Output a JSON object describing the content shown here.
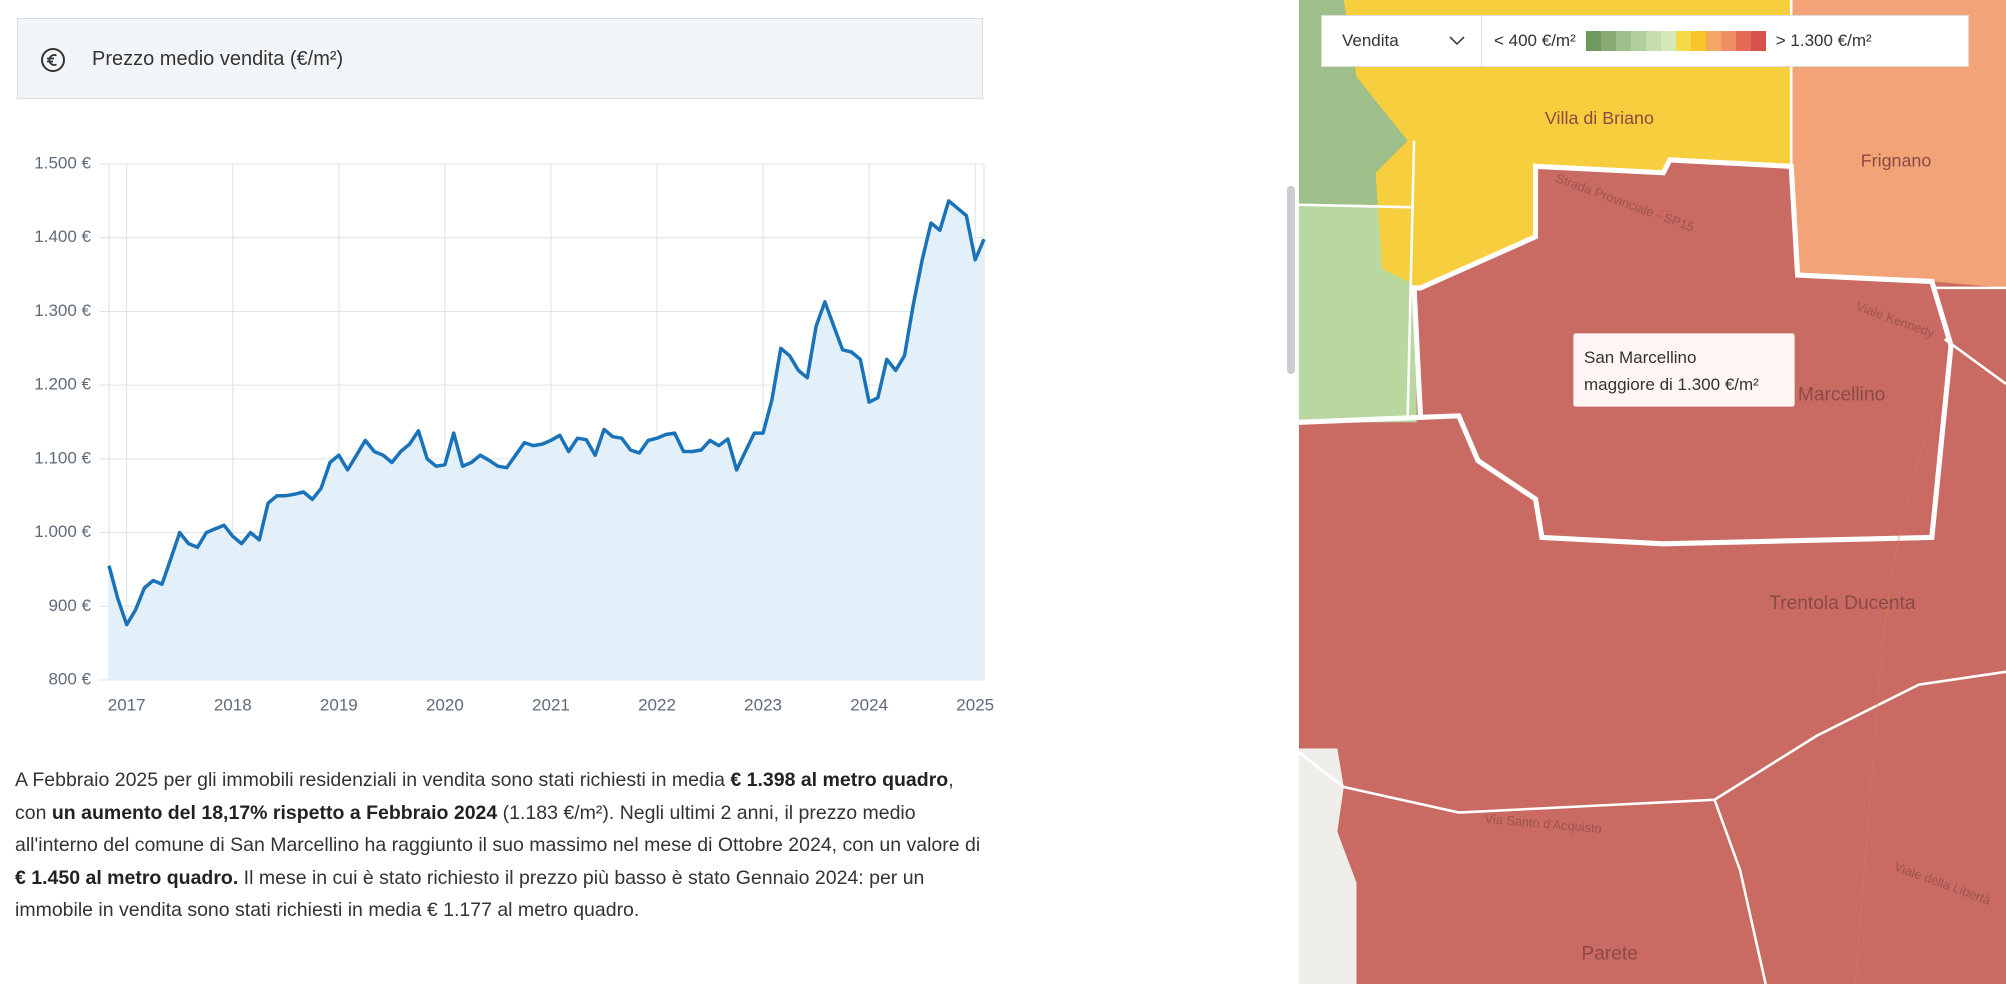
{
  "header": {
    "title": "Prezzo medio vendita (€/m²)"
  },
  "chart_data": {
    "type": "line",
    "x": [
      2016.833,
      2016.917,
      2017,
      2017.083,
      2017.167,
      2017.25,
      2017.333,
      2017.417,
      2017.5,
      2017.583,
      2017.667,
      2017.75,
      2017.833,
      2017.917,
      2018,
      2018.083,
      2018.167,
      2018.25,
      2018.333,
      2018.417,
      2018.5,
      2018.583,
      2018.667,
      2018.75,
      2018.833,
      2018.917,
      2019,
      2019.083,
      2019.167,
      2019.25,
      2019.333,
      2019.417,
      2019.5,
      2019.583,
      2019.667,
      2019.75,
      2019.833,
      2019.917,
      2020,
      2020.083,
      2020.167,
      2020.25,
      2020.333,
      2020.417,
      2020.5,
      2020.583,
      2020.667,
      2020.75,
      2020.833,
      2020.917,
      2021,
      2021.083,
      2021.167,
      2021.25,
      2021.333,
      2021.417,
      2021.5,
      2021.583,
      2021.667,
      2021.75,
      2021.833,
      2021.917,
      2022,
      2022.083,
      2022.167,
      2022.25,
      2022.333,
      2022.417,
      2022.5,
      2022.583,
      2022.667,
      2022.75,
      2022.833,
      2022.917,
      2023,
      2023.083,
      2023.167,
      2023.25,
      2023.333,
      2023.417,
      2023.5,
      2023.583,
      2023.667,
      2023.75,
      2023.833,
      2023.917,
      2024,
      2024.083,
      2024.167,
      2024.25,
      2024.333,
      2024.417,
      2024.5,
      2024.583,
      2024.667,
      2024.75,
      2024.833,
      2024.917,
      2025,
      2025.083
    ],
    "values": [
      955,
      910,
      875,
      895,
      925,
      935,
      930,
      965,
      1000,
      985,
      980,
      1000,
      1005,
      1010,
      995,
      985,
      1000,
      990,
      1040,
      1050,
      1050,
      1052,
      1055,
      1045,
      1060,
      1095,
      1105,
      1085,
      1105,
      1125,
      1110,
      1105,
      1095,
      1110,
      1120,
      1138,
      1100,
      1090,
      1092,
      1135,
      1090,
      1095,
      1105,
      1098,
      1090,
      1088,
      1105,
      1122,
      1118,
      1120,
      1125,
      1132,
      1110,
      1128,
      1126,
      1105,
      1140,
      1130,
      1128,
      1112,
      1108,
      1125,
      1128,
      1133,
      1135,
      1110,
      1110,
      1112,
      1125,
      1118,
      1127,
      1085,
      1110,
      1135,
      1135,
      1180,
      1250,
      1240,
      1220,
      1210,
      1280,
      1313,
      1280,
      1248,
      1245,
      1235,
      1177,
      1183,
      1235,
      1220,
      1240,
      1310,
      1370,
      1420,
      1410,
      1450,
      1440,
      1430,
      1370,
      1398
    ],
    "color": "#1a73b8",
    "area_color": "#e3f0f9",
    "xlim": [
      2016.833,
      2025.083
    ],
    "xticks": [
      2017,
      2018,
      2019,
      2020,
      2021,
      2022,
      2023,
      2024,
      2025
    ],
    "ylim": [
      800,
      1500
    ],
    "yticks": [
      {
        "value": 800,
        "label": "800 €"
      },
      {
        "value": 900,
        "label": "900 €"
      },
      {
        "value": 1000,
        "label": "1.000 €"
      },
      {
        "value": 1100,
        "label": "1.100 €"
      },
      {
        "value": 1200,
        "label": "1.200 €"
      },
      {
        "value": 1300,
        "label": "1.300 €"
      },
      {
        "value": 1400,
        "label": "1.400 €"
      },
      {
        "value": 1500,
        "label": "1.500 €"
      }
    ],
    "grid": true
  },
  "description": [
    {
      "text": "A Febbraio 2025 per gli immobili residenziali in vendita sono stati richiesti in media ",
      "bold": false
    },
    {
      "text": "€ 1.398 al metro quadro",
      "bold": true
    },
    {
      "text": ", con ",
      "bold": false
    },
    {
      "text": "un aumento del 18,17% rispetto a Febbraio 2024",
      "bold": true
    },
    {
      "text": " (1.183 €/m²). Negli ultimi 2 anni, il prezzo medio all'interno del comune di San Marcellino ha raggiunto il suo massimo nel mese di Ottobre 2024, con un valore di ",
      "bold": false
    },
    {
      "text": "€ 1.450 al metro quadro.",
      "bold": true
    },
    {
      "text": " Il mese in cui è stato richiesto il prezzo più basso è stato Gennaio 2024: per un immobile in vendita sono stati richiesti in media € 1.177 al metro quadro.",
      "bold": false
    }
  ],
  "map": {
    "selector": "Vendita",
    "legend_min": "< 400 €/m²",
    "legend_max": "> 1.300 €/m²",
    "legend_colors": [
      "#6e9a5e",
      "#86aa72",
      "#9fbf8a",
      "#b1cf9b",
      "#c4dfab",
      "#d7e8b8",
      "#f7d84a",
      "#f7c52a",
      "#f5a864",
      "#f08f63",
      "#e36b55",
      "#d5524a"
    ],
    "tooltip": [
      "San Marcellino",
      "maggiore di 1.300 €/m²"
    ],
    "places": [
      "Villa di Briano",
      "Frignano",
      "San Marcellino",
      "Trentola Ducenta",
      "Parete"
    ],
    "roads": [
      "Strada Provinciale - SP15",
      "Viale Kennedy",
      "Via Santo d'Acquisto",
      "Viale della Libertà"
    ]
  }
}
